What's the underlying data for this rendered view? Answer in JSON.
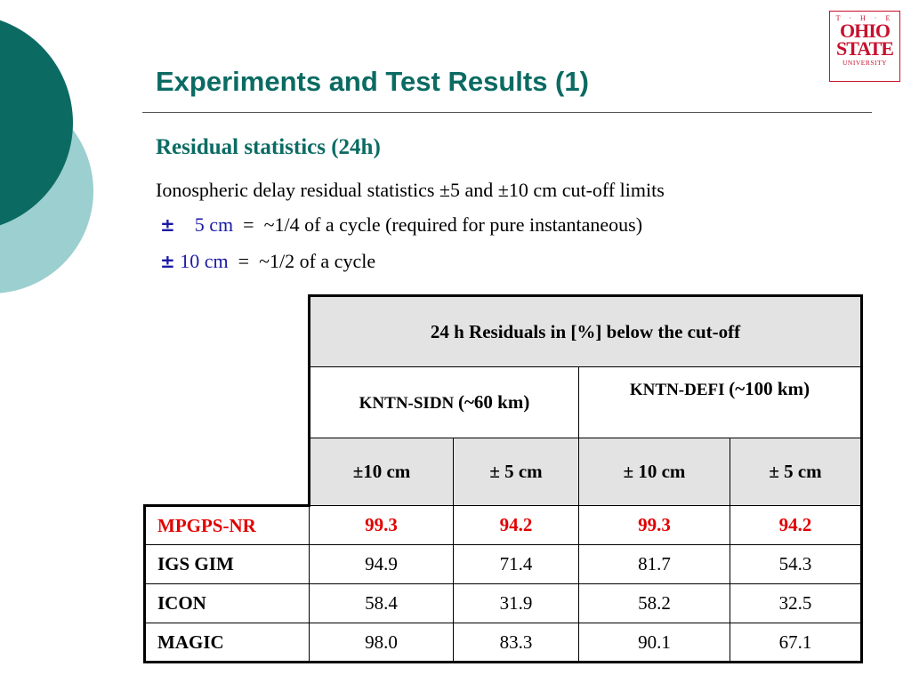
{
  "title": "Experiments and Test Results (1)",
  "subtitle": "Residual statistics (24h)",
  "intro": "Ionospheric delay residual statistics ±5 and ±10 cm cut-off limits",
  "bullets": [
    {
      "pm": "±",
      "value": "5 cm",
      "eq": "=",
      "text": "~1/4 of a cycle (required for pure instantaneous)"
    },
    {
      "pm": "±",
      "value": "10 cm",
      "eq": "=",
      "text": "~1/2 of a cycle"
    }
  ],
  "logo": {
    "the": "T · H · E",
    "ohio": "OHIO",
    "state": "STATE",
    "university": "UNIVERSITY"
  },
  "table": {
    "header": "24 h Residuals in [%] below the cut-off",
    "baselines": [
      {
        "name": "KNTN-SIDN",
        "dist": "(~60 km)"
      },
      {
        "name": "KNTN-DEFI",
        "dist": "(~100 km)"
      }
    ],
    "cutoffs": [
      "±10 cm",
      "± 5 cm",
      "± 10 cm",
      "± 5 cm"
    ],
    "rows": [
      {
        "label": "MPGPS-NR",
        "values": [
          "99.3",
          "94.2",
          "99.3",
          "94.2"
        ]
      },
      {
        "label": "IGS GIM",
        "values": [
          "94.9",
          "71.4",
          "81.7",
          "54.3"
        ]
      },
      {
        "label": "ICON",
        "values": [
          "58.4",
          "31.9",
          "58.2",
          "32.5"
        ]
      },
      {
        "label": "MAGIC",
        "values": [
          "98.0",
          "83.3",
          "90.1",
          "67.1"
        ]
      }
    ]
  },
  "colors": {
    "title": "#0b6b63",
    "accent_dark": "#0b6b63",
    "accent_light": "#9ccfcf",
    "highlight": "#e10000",
    "bullet": "#1a1aa6"
  }
}
